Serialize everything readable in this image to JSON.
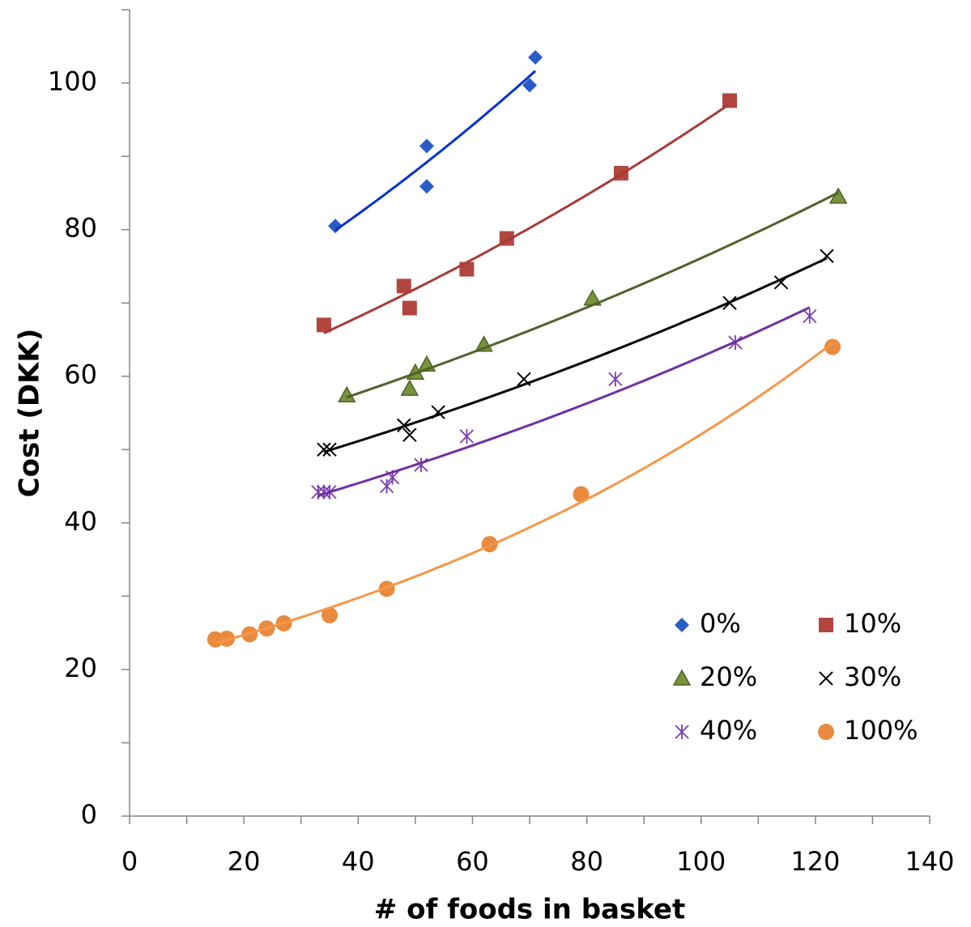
{
  "chart_data": {
    "type": "scatter",
    "x_label": "# of foods in basket",
    "y_label": "Cost (DKK)",
    "xlim": [
      0,
      140
    ],
    "xticks": [
      0,
      20,
      40,
      60,
      80,
      100,
      120,
      140
    ],
    "ylim": [
      0,
      110
    ],
    "yticks": [
      0,
      20,
      40,
      60,
      80,
      100
    ],
    "trendline": "exponential",
    "legend": "lower right",
    "series": [
      {
        "name": "0%",
        "color": "#2a5cc8",
        "line_color": "#0033cc",
        "marker": "diamond",
        "x": [
          36,
          52,
          52,
          70,
          71
        ],
        "values": [
          80.5,
          91.4,
          85.9,
          99.7,
          103.5
        ]
      },
      {
        "name": "10%",
        "color": "#b2463f",
        "line_color": "#a83a36",
        "marker": "square",
        "x": [
          34,
          48,
          49,
          59,
          66,
          86,
          105
        ],
        "values": [
          67.0,
          72.3,
          69.3,
          74.6,
          78.8,
          87.7,
          97.6
        ]
      },
      {
        "name": "20%",
        "color": "#77933c",
        "line_color": "#4f6228",
        "marker": "triangle",
        "x": [
          38,
          49,
          50,
          52,
          62,
          81,
          124
        ],
        "values": [
          57.4,
          58.3,
          60.5,
          61.6,
          64.3,
          70.6,
          84.5
        ]
      },
      {
        "name": "30%",
        "color": "#000000",
        "line_color": "#000000",
        "marker": "x",
        "x": [
          34,
          35,
          48,
          49,
          54,
          69,
          105,
          114,
          122
        ],
        "values": [
          50.0,
          50.0,
          53.3,
          52.0,
          55.1,
          59.6,
          70.0,
          72.8,
          76.4
        ]
      },
      {
        "name": "40%",
        "color": "#7a3db0",
        "line_color": "#7030a0",
        "marker": "asterisk",
        "x": [
          33,
          34,
          35,
          45,
          46,
          51,
          59,
          85,
          106,
          119
        ],
        "values": [
          44.2,
          44.2,
          44.2,
          45.0,
          46.2,
          47.9,
          51.8,
          59.6,
          64.6,
          68.2
        ]
      },
      {
        "name": "100%",
        "color": "#e98a3e",
        "line_color": "#f79646",
        "marker": "circle",
        "x": [
          15,
          17,
          21,
          24,
          27,
          35,
          45,
          63,
          79,
          123
        ],
        "values": [
          24.1,
          24.2,
          24.8,
          25.6,
          26.3,
          27.4,
          31.0,
          37.1,
          43.9,
          64.0
        ]
      }
    ]
  }
}
